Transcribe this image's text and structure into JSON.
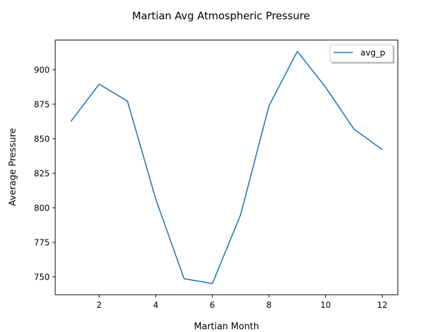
{
  "chart_data": {
    "type": "line",
    "title": "Martian Avg Atmospheric Pressure",
    "xlabel": "Martian Month",
    "ylabel": "Average Pressure",
    "x": [
      1,
      2,
      3,
      4,
      5,
      6,
      7,
      8,
      9,
      10,
      11,
      12
    ],
    "series": [
      {
        "name": "avg_p",
        "color": "#1f77b4",
        "values": [
          862.5,
          889.5,
          877.3,
          806.3,
          748.6,
          745.1,
          795.1,
          873.8,
          913.3,
          887.3,
          857.0,
          842.2
        ]
      }
    ],
    "xlim": [
      0.45,
      12.55
    ],
    "ylim": [
      737.0,
      921.5
    ],
    "xticks": [
      2,
      4,
      6,
      8,
      10,
      12
    ],
    "yticks": [
      750,
      775,
      800,
      825,
      850,
      875,
      900
    ],
    "grid": false,
    "legend_position": "top-right"
  }
}
